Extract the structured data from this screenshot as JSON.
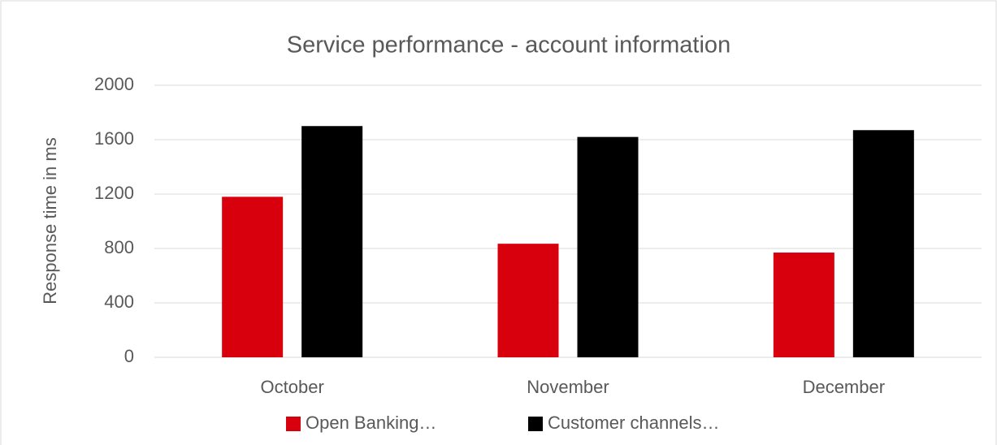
{
  "chart_data": {
    "type": "bar",
    "title": "Service performance - account information",
    "y_label": "Response time in ms",
    "categories": [
      "October",
      "November",
      "December"
    ],
    "series": [
      {
        "name": "Open Banking…",
        "color": "#d9000d",
        "values": [
          1180,
          835,
          770
        ]
      },
      {
        "name": "Customer channels…",
        "color": "#000000",
        "values": [
          1700,
          1620,
          1670
        ]
      }
    ],
    "ylim": [
      0,
      2000
    ],
    "yticks": [
      0,
      400,
      800,
      1200,
      1600,
      2000
    ],
    "grid": true,
    "legend": "bottom"
  }
}
